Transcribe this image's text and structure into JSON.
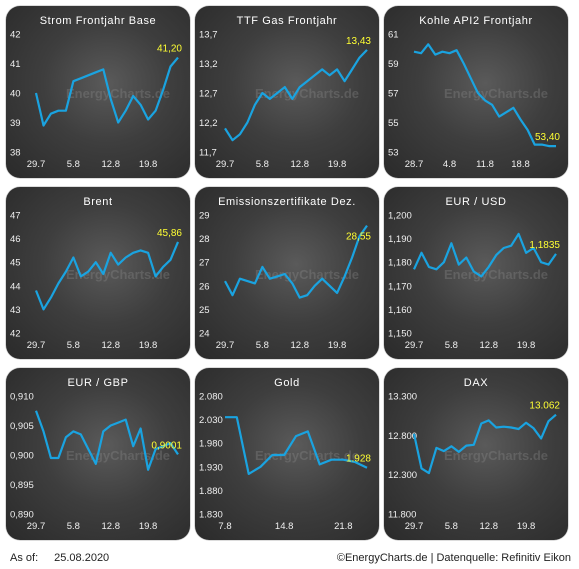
{
  "footer": {
    "as_of_label": "As of:",
    "as_of_date": "25.08.2020",
    "source": "©EnergyCharts.de | Datenquelle: Refinitiv Eikon"
  },
  "watermark": "EnergyCharts.de",
  "colors": {
    "line": "#1aa3e0",
    "value_label": "#ffff33",
    "tick": "#f0f0f0"
  },
  "chart_data": [
    {
      "type": "line",
      "title": "Strom Frontjahr Base",
      "x": [
        "29.7",
        "30.7",
        "31.7",
        "3.8",
        "4.8",
        "5.8",
        "6.8",
        "7.8",
        "10.8",
        "11.8",
        "12.8",
        "13.8",
        "14.8",
        "17.8",
        "18.8",
        "19.8",
        "20.8",
        "21.8",
        "24.8",
        "25.8"
      ],
      "values": [
        40.0,
        38.9,
        39.3,
        39.4,
        39.4,
        40.4,
        40.5,
        40.6,
        40.7,
        40.8,
        39.8,
        39.0,
        39.4,
        39.9,
        39.6,
        39.1,
        39.4,
        40.1,
        40.9,
        41.2
      ],
      "xticks": [
        "29.7",
        "5.8",
        "12.8",
        "19.8"
      ],
      "yticks": [
        "38",
        "39",
        "40",
        "41",
        "42"
      ],
      "ylim": [
        38,
        42
      ],
      "last_label": "41,20"
    },
    {
      "type": "line",
      "title": "TTF Gas Frontjahr",
      "x": [
        "29.7",
        "30.7",
        "31.7",
        "3.8",
        "4.8",
        "5.8",
        "6.8",
        "7.8",
        "10.8",
        "11.8",
        "12.8",
        "13.8",
        "14.8",
        "17.8",
        "18.8",
        "19.8",
        "20.8",
        "21.8",
        "24.8",
        "25.8"
      ],
      "values": [
        12.1,
        11.9,
        12.0,
        12.2,
        12.5,
        12.7,
        12.6,
        12.7,
        12.8,
        12.6,
        12.8,
        12.9,
        13.0,
        13.1,
        13.0,
        13.1,
        12.9,
        13.1,
        13.3,
        13.43
      ],
      "xticks": [
        "29.7",
        "5.8",
        "12.8",
        "19.8"
      ],
      "yticks": [
        "11,7",
        "12,2",
        "12,7",
        "13,2",
        "13,7"
      ],
      "ylim": [
        11.7,
        13.7
      ],
      "last_label": "13,43"
    },
    {
      "type": "line",
      "title": "Kohle API2 Frontjahr",
      "x": [
        "28.7",
        "29.7",
        "30.7",
        "31.7",
        "3.8",
        "4.8",
        "5.8",
        "6.8",
        "7.8",
        "10.8",
        "11.8",
        "12.8",
        "13.8",
        "14.8",
        "17.8",
        "18.8",
        "19.8",
        "20.8",
        "21.8",
        "24.8",
        "25.8"
      ],
      "values": [
        59.8,
        59.7,
        60.3,
        59.6,
        59.8,
        59.7,
        59.9,
        59.0,
        58.0,
        57.0,
        56.5,
        56.2,
        55.4,
        55.7,
        56.0,
        55.2,
        54.5,
        53.5,
        53.5,
        53.4,
        53.4
      ],
      "xticks": [
        "28.7",
        "4.8",
        "11.8",
        "18.8"
      ],
      "yticks": [
        "53",
        "55",
        "57",
        "59",
        "61"
      ],
      "ylim": [
        53,
        61
      ],
      "last_label": "53,40"
    },
    {
      "type": "line",
      "title": "Brent",
      "x": [
        "29.7",
        "30.7",
        "31.7",
        "3.8",
        "4.8",
        "5.8",
        "6.8",
        "7.8",
        "10.8",
        "11.8",
        "12.8",
        "13.8",
        "14.8",
        "17.8",
        "18.8",
        "19.8",
        "20.8",
        "21.8",
        "24.8",
        "25.8"
      ],
      "values": [
        43.8,
        43.0,
        43.5,
        44.1,
        44.6,
        45.2,
        44.4,
        44.6,
        45.0,
        44.5,
        45.4,
        44.9,
        45.2,
        45.4,
        45.5,
        45.4,
        44.4,
        44.8,
        45.1,
        45.86
      ],
      "xticks": [
        "29.7",
        "5.8",
        "12.8",
        "19.8"
      ],
      "yticks": [
        "42",
        "43",
        "44",
        "45",
        "46",
        "47"
      ],
      "ylim": [
        42,
        47
      ],
      "last_label": "45,86"
    },
    {
      "type": "line",
      "title": "Emissionszertifikate Dez.",
      "x": [
        "29.7",
        "30.7",
        "31.7",
        "3.8",
        "4.8",
        "5.8",
        "6.8",
        "7.8",
        "10.8",
        "11.8",
        "12.8",
        "13.8",
        "14.8",
        "17.8",
        "18.8",
        "19.8",
        "20.8",
        "21.8",
        "24.8",
        "25.8"
      ],
      "values": [
        26.2,
        25.6,
        26.3,
        26.2,
        26.1,
        26.8,
        26.3,
        26.4,
        26.5,
        26.1,
        25.5,
        25.6,
        26.0,
        26.3,
        26.0,
        25.7,
        26.4,
        27.2,
        28.1,
        28.55
      ],
      "xticks": [
        "29.7",
        "5.8",
        "12.8",
        "19.8"
      ],
      "yticks": [
        "24",
        "25",
        "26",
        "27",
        "28",
        "29"
      ],
      "ylim": [
        24,
        29
      ],
      "last_label": "28,55"
    },
    {
      "type": "line",
      "title": "EUR / USD",
      "x": [
        "29.7",
        "30.7",
        "31.7",
        "3.8",
        "4.8",
        "5.8",
        "6.8",
        "7.8",
        "10.8",
        "11.8",
        "12.8",
        "13.8",
        "14.8",
        "17.8",
        "18.8",
        "19.8",
        "20.8",
        "21.8",
        "24.8",
        "25.8"
      ],
      "values": [
        1.177,
        1.184,
        1.178,
        1.177,
        1.18,
        1.188,
        1.179,
        1.182,
        1.176,
        1.174,
        1.178,
        1.183,
        1.186,
        1.187,
        1.192,
        1.184,
        1.186,
        1.18,
        1.179,
        1.1835
      ],
      "xticks": [
        "29.7",
        "5.8",
        "12.8",
        "19.8"
      ],
      "yticks": [
        "1,150",
        "1,160",
        "1,170",
        "1,180",
        "1,190",
        "1,200"
      ],
      "ylim": [
        1.15,
        1.2
      ],
      "last_label": "1,1835"
    },
    {
      "type": "line",
      "title": "EUR / GBP",
      "x": [
        "29.7",
        "30.7",
        "31.7",
        "3.8",
        "4.8",
        "5.8",
        "6.8",
        "7.8",
        "10.8",
        "11.8",
        "12.8",
        "13.8",
        "14.8",
        "17.8",
        "18.8",
        "19.8",
        "20.8",
        "21.8",
        "24.8",
        "25.8"
      ],
      "values": [
        0.9075,
        0.904,
        0.8995,
        0.8995,
        0.903,
        0.904,
        0.9035,
        0.901,
        0.8985,
        0.904,
        0.905,
        0.9055,
        0.906,
        0.9015,
        0.9045,
        0.8975,
        0.901,
        0.9015,
        0.902,
        0.9001
      ],
      "xticks": [
        "29.7",
        "5.8",
        "12.8",
        "19.8"
      ],
      "yticks": [
        "0,890",
        "0,895",
        "0,900",
        "0,905",
        "0,910"
      ],
      "ylim": [
        0.89,
        0.91
      ],
      "last_label": "0,9001"
    },
    {
      "type": "line",
      "title": "Gold",
      "x": [
        "7.8",
        "10.8",
        "11.8",
        "12.8",
        "13.8",
        "14.8",
        "17.8",
        "18.8",
        "19.8",
        "20.8",
        "21.8",
        "24.8",
        "25.8"
      ],
      "values": [
        2035,
        2035,
        1915,
        1930,
        1955,
        1955,
        1995,
        2005,
        1935,
        1945,
        1945,
        1940,
        1928
      ],
      "xticks": [
        "7.8",
        "14.8",
        "21.8"
      ],
      "yticks": [
        "1.830",
        "1.880",
        "1.930",
        "1.980",
        "2.030",
        "2.080"
      ],
      "ylim": [
        1830,
        2080
      ],
      "last_label": "1.928"
    },
    {
      "type": "line",
      "title": "DAX",
      "x": [
        "29.7",
        "30.7",
        "31.7",
        "3.8",
        "4.8",
        "5.8",
        "6.8",
        "7.8",
        "10.8",
        "11.8",
        "12.8",
        "13.8",
        "14.8",
        "17.8",
        "18.8",
        "19.8",
        "20.8",
        "21.8",
        "24.8",
        "25.8"
      ],
      "values": [
        12820,
        12380,
        12320,
        12640,
        12600,
        12660,
        12590,
        12670,
        12680,
        12950,
        12990,
        12900,
        12910,
        12900,
        12880,
        12960,
        12890,
        12760,
        12980,
        13062
      ],
      "xticks": [
        "29.7",
        "5.8",
        "12.8",
        "19.8"
      ],
      "yticks": [
        "11.800",
        "12.300",
        "12.800",
        "13.300"
      ],
      "ylim": [
        11800,
        13300
      ],
      "last_label": "13.062"
    }
  ]
}
